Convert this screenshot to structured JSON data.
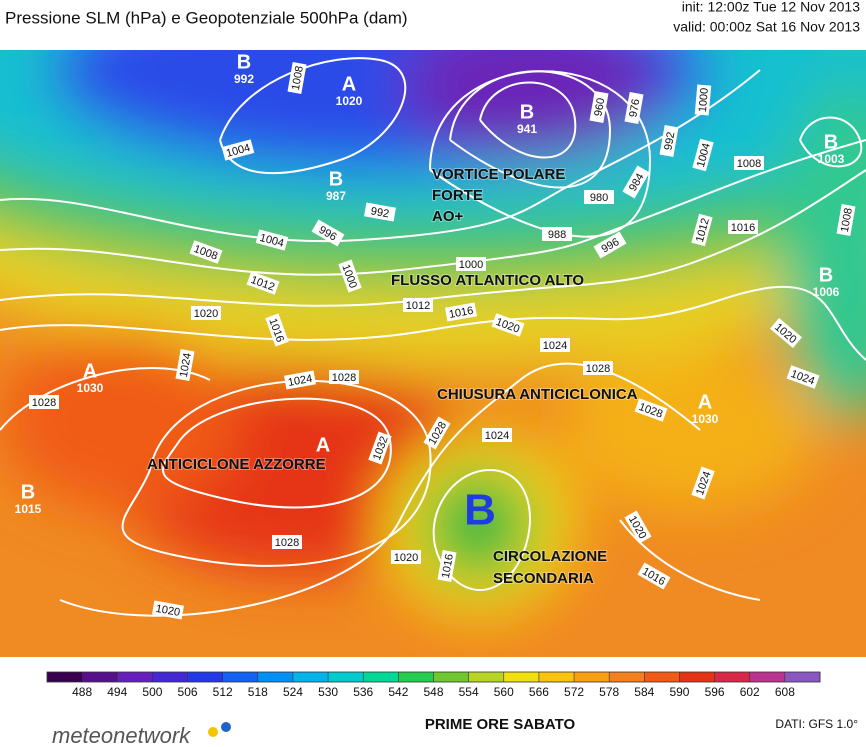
{
  "header": {
    "title": "Pressione SLM (hPa) e Geopotenziale 500hPa (dam)",
    "init": "init: 12:00z Tue 12 Nov 2013",
    "valid": "valid: 00:00z Sat 16 Nov 2013"
  },
  "annotations": [
    "VORTICE POLARE",
    "FORTE",
    "AO+",
    "FLUSSO ATLANTICO ALTO",
    "CHIUSURA ANTICICLONICA",
    "ANTICICLONE AZZORRE",
    "CIRCOLAZIONE",
    "SECONDARIA"
  ],
  "centers": [
    {
      "letter": "B",
      "value": 992
    },
    {
      "letter": "A",
      "value": 1020
    },
    {
      "letter": "B",
      "value": 941
    },
    {
      "letter": "B",
      "value": 987
    },
    {
      "letter": "B",
      "value": 1003
    },
    {
      "letter": "B",
      "value": 1006
    },
    {
      "letter": "A",
      "value": 1030
    },
    {
      "letter": "A"
    },
    {
      "letter": "A",
      "value": 1030
    },
    {
      "letter": "B",
      "value": 1015
    },
    {
      "letter": "B"
    }
  ],
  "isobar_labels": [
    1008,
    1004,
    992,
    996,
    1004,
    1008,
    1012,
    1016,
    1020,
    1024,
    1028,
    1024,
    1028,
    1032,
    1028,
    1020,
    1000,
    1000,
    1012,
    1016,
    1020,
    1024,
    1028,
    1028,
    1024,
    1028,
    1020,
    1016,
    1016,
    1020,
    1024,
    1024,
    1020,
    1016,
    1012,
    1008,
    1008,
    1004,
    1000,
    976,
    960,
    992,
    984,
    980,
    988,
    996
  ],
  "colorbar": {
    "ticks": [
      488,
      494,
      500,
      506,
      512,
      518,
      524,
      530,
      536,
      542,
      548,
      554,
      560,
      566,
      572,
      578,
      584,
      590,
      596,
      602,
      608
    ],
    "colors": [
      "#3a0050",
      "#55108a",
      "#6420b8",
      "#4428d4",
      "#2438e8",
      "#1460f0",
      "#0090f0",
      "#00b4ea",
      "#00ccd0",
      "#00d898",
      "#28cc50",
      "#70c830",
      "#b8d424",
      "#f0e010",
      "#f8c410",
      "#f8a014",
      "#f08020",
      "#f05c18",
      "#e43418",
      "#d82848",
      "#b83490",
      "#8858c0"
    ]
  },
  "footer": {
    "brand": "meteonetwork",
    "caption": "PRIME ORE SABATO",
    "source": "DATI:  GFS  1.0°"
  }
}
